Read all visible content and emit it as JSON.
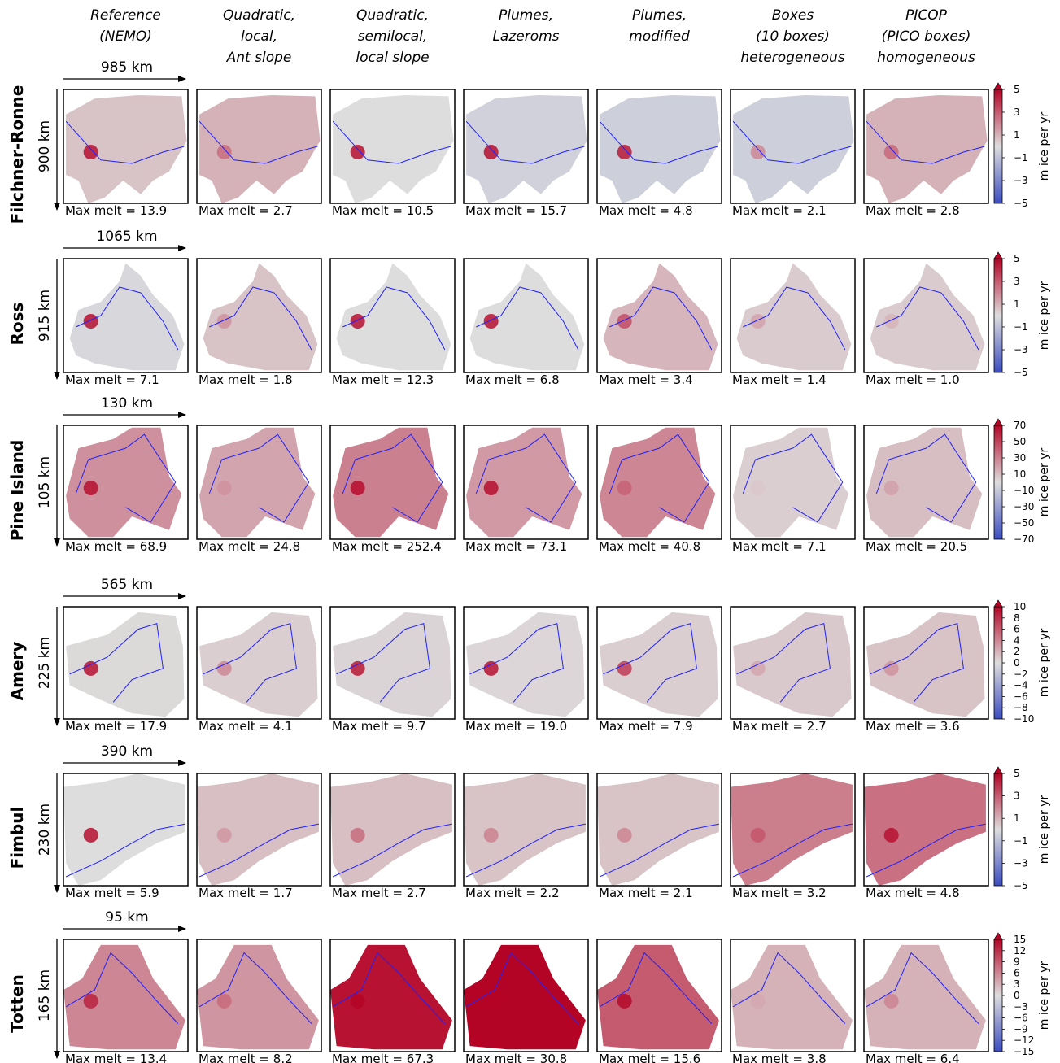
{
  "chart_data": {
    "type": "heatmap",
    "columns": [
      [
        "Reference",
        "(NEMO)"
      ],
      [
        "Quadratic,",
        "local,",
        "Ant slope"
      ],
      [
        "Quadratic,",
        "semilocal,",
        "local slope"
      ],
      [
        "Plumes,",
        "Lazeroms"
      ],
      [
        "Plumes,",
        "modified"
      ],
      [
        "Boxes",
        "(10 boxes)",
        "heterogeneous"
      ],
      [
        "PICOP",
        "(PICO boxes)",
        "homogeneous"
      ]
    ],
    "max_melt_prefix": "Max melt = ",
    "colorbar_label": "m ice per yr",
    "colors": {
      "low": "#3b4cc0",
      "mid": "#dddddd",
      "high": "#b40426",
      "grounding_line": "#2020ff"
    },
    "rows": [
      {
        "name": "Filchner-Ronne",
        "width_label": "985 km",
        "height_label": "900 km",
        "colorbar_ticks": [
          "5",
          "3",
          "1",
          "−1",
          "−3",
          "−5"
        ],
        "vmax": 5,
        "max_melt": [
          "13.9",
          "2.7",
          "10.5",
          "15.7",
          "4.8",
          "2.1",
          "2.8"
        ],
        "mean_melt": [
          0.6,
          1.0,
          0.0,
          -0.4,
          -0.5,
          -0.5,
          1.0
        ]
      },
      {
        "name": "Ross",
        "width_label": "1065 km",
        "height_label": "915 km",
        "colorbar_ticks": [
          "5",
          "3",
          "1",
          "−1",
          "−3",
          "−5"
        ],
        "vmax": 5,
        "max_melt": [
          "7.1",
          "1.8",
          "12.3",
          "6.8",
          "3.4",
          "1.4",
          "1.0"
        ],
        "mean_melt": [
          -0.2,
          0.6,
          0.0,
          0.0,
          0.9,
          0.4,
          0.4
        ]
      },
      {
        "name": "Pine Island",
        "width_label": "130 km",
        "height_label": "105 km",
        "colorbar_ticks": [
          "70",
          "50",
          "30",
          "10",
          "−10",
          "−30",
          "−50",
          "−70"
        ],
        "vmax": 70,
        "max_melt": [
          "68.9",
          "24.8",
          "252.4",
          "73.1",
          "40.8",
          "7.1",
          "20.5"
        ],
        "mean_melt": [
          25,
          18,
          30,
          22,
          28,
          5,
          10
        ]
      },
      {
        "name": "Amery",
        "width_label": "565 km",
        "height_label": "225 km",
        "colorbar_ticks": [
          "10",
          "8",
          "6",
          "4",
          "2",
          "0",
          "−2",
          "−4",
          "−6",
          "−8",
          "−10"
        ],
        "vmax": 10,
        "max_melt": [
          "17.9",
          "4.1",
          "9.7",
          "19.0",
          "7.9",
          "2.7",
          "3.6"
        ],
        "mean_melt": [
          0.2,
          0.7,
          0.4,
          0.3,
          0.7,
          0.9,
          1.2
        ]
      },
      {
        "name": "Fimbul",
        "width_label": "390 km",
        "height_label": "230 km",
        "colorbar_ticks": [
          "5",
          "3",
          "1",
          "−1",
          "−3",
          "−5"
        ],
        "vmax": 5,
        "max_melt": [
          "5.9",
          "1.7",
          "2.7",
          "2.2",
          "2.1",
          "3.2",
          "4.8"
        ],
        "mean_melt": [
          0.0,
          0.7,
          0.7,
          0.6,
          0.6,
          2.2,
          2.5
        ]
      },
      {
        "name": "Totten",
        "width_label": "95 km",
        "height_label": "165 km",
        "colorbar_ticks": [
          "15",
          "12",
          "9",
          "6",
          "3",
          "0",
          "−3",
          "−6",
          "−9",
          "−12",
          "−15"
        ],
        "vmax": 15,
        "max_melt": [
          "13.4",
          "8.2",
          "67.3",
          "30.8",
          "15.6",
          "3.8",
          "6.4"
        ],
        "mean_melt": [
          6,
          5,
          14,
          15,
          9,
          3,
          3
        ]
      }
    ]
  }
}
